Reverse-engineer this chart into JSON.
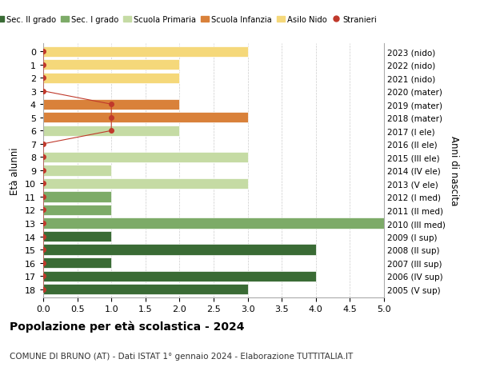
{
  "ages": [
    18,
    17,
    16,
    15,
    14,
    13,
    12,
    11,
    10,
    9,
    8,
    7,
    6,
    5,
    4,
    3,
    2,
    1,
    0
  ],
  "years": [
    "2005 (V sup)",
    "2006 (IV sup)",
    "2007 (III sup)",
    "2008 (II sup)",
    "2009 (I sup)",
    "2010 (III med)",
    "2011 (II med)",
    "2012 (I med)",
    "2013 (V ele)",
    "2014 (IV ele)",
    "2015 (III ele)",
    "2016 (II ele)",
    "2017 (I ele)",
    "2018 (mater)",
    "2019 (mater)",
    "2020 (mater)",
    "2021 (nido)",
    "2022 (nido)",
    "2023 (nido)"
  ],
  "bar_values": [
    3,
    4,
    1,
    4,
    1,
    5,
    1,
    1,
    3,
    1,
    3,
    0,
    2,
    3,
    2,
    0,
    2,
    2,
    3
  ],
  "bar_colors": [
    "#3a6b35",
    "#3a6b35",
    "#3a6b35",
    "#3a6b35",
    "#3a6b35",
    "#7dab68",
    "#7dab68",
    "#7dab68",
    "#c5dba4",
    "#c5dba4",
    "#c5dba4",
    "#c5dba4",
    "#c5dba4",
    "#d9813a",
    "#d9813a",
    "#d9813a",
    "#f5d87a",
    "#f5d87a",
    "#f5d87a"
  ],
  "stranieri_values": [
    0,
    0,
    0,
    0,
    0,
    0,
    0,
    0,
    0,
    0,
    0,
    0,
    1,
    1,
    1,
    0,
    0,
    0,
    0
  ],
  "stranieri_color": "#c0392b",
  "legend_labels": [
    "Sec. II grado",
    "Sec. I grado",
    "Scuola Primaria",
    "Scuola Infanzia",
    "Asilo Nido",
    "Stranieri"
  ],
  "legend_colors": [
    "#3a6b35",
    "#7dab68",
    "#c5dba4",
    "#d9813a",
    "#f5d87a",
    "#c0392b"
  ],
  "title": "Popolazione per età scolastica - 2024",
  "subtitle": "COMUNE DI BRUNO (AT) - Dati ISTAT 1° gennaio 2024 - Elaborazione TUTTITALIA.IT",
  "ylabel_left": "Età alunni",
  "ylabel_right": "Anni di nascita",
  "xlim": [
    0,
    5.0
  ],
  "background_color": "#ffffff",
  "grid_color": "#cccccc",
  "bar_height": 0.8
}
